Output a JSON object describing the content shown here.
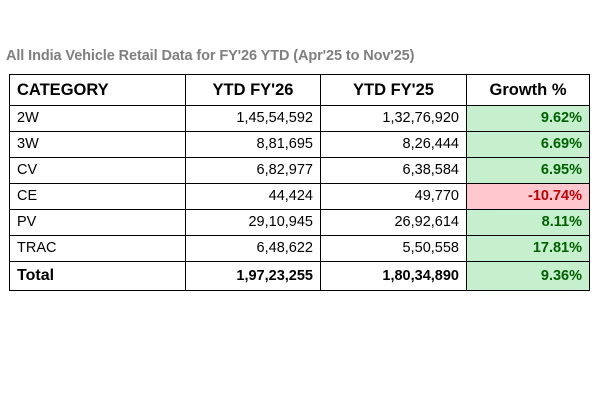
{
  "title": "All India Vehicle Retail Data for FY'26 YTD (Apr'25 to Nov'25)",
  "table": {
    "headers": [
      "CATEGORY",
      "YTD FY'26",
      "YTD FY'25",
      "Growth %"
    ],
    "rows": [
      {
        "category": "2W",
        "fy26": "1,45,54,592",
        "fy25": "1,32,76,920",
        "growth": "9.62%",
        "trend": "positive"
      },
      {
        "category": "3W",
        "fy26": "8,81,695",
        "fy25": "8,26,444",
        "growth": "6.69%",
        "trend": "positive"
      },
      {
        "category": "CV",
        "fy26": "6,82,977",
        "fy25": "6,38,584",
        "growth": "6.95%",
        "trend": "positive"
      },
      {
        "category": "CE",
        "fy26": "44,424",
        "fy25": "49,770",
        "growth": "-10.74%",
        "trend": "negative"
      },
      {
        "category": "PV",
        "fy26": "29,10,945",
        "fy25": "26,92,614",
        "growth": "8.11%",
        "trend": "positive"
      },
      {
        "category": "TRAC",
        "fy26": "6,48,622",
        "fy25": "5,50,558",
        "growth": "17.81%",
        "trend": "positive"
      }
    ],
    "total": {
      "category": "Total",
      "fy26": "1,97,23,255",
      "fy25": "1,80,34,890",
      "growth": "9.36%",
      "trend": "positive"
    }
  },
  "colors": {
    "positive_fill": "#c6efce",
    "positive_text": "#006100",
    "negative_fill": "#ffc7ce",
    "negative_text": "#c00000",
    "title_text": "#7f7f7f"
  }
}
